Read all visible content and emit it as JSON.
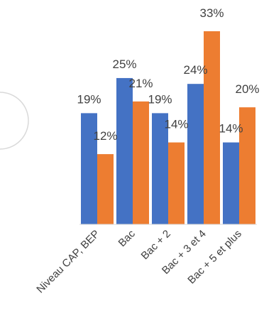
{
  "chart_data": {
    "type": "bar",
    "categories": [
      "Niveau CAP, BEP",
      "Bac",
      "Bac + 2",
      "Bac + 3 et 4",
      "Bac + 5 et plus"
    ],
    "series": [
      {
        "values": [
          19,
          25,
          19,
          24,
          14
        ],
        "labels": [
          "19%",
          "25%",
          "19%",
          "24%",
          "14%"
        ],
        "color": "#4472C4"
      },
      {
        "values": [
          12,
          21,
          14,
          33,
          20
        ],
        "labels": [
          "12%",
          "21%",
          "14%",
          "33%",
          "20%"
        ],
        "color": "#ED7D31"
      }
    ],
    "title": "",
    "xlabel": "",
    "ylabel": "",
    "ylim": [
      0,
      33
    ],
    "grid": false,
    "legend": "none",
    "axis_color": "#D9D9D9"
  }
}
